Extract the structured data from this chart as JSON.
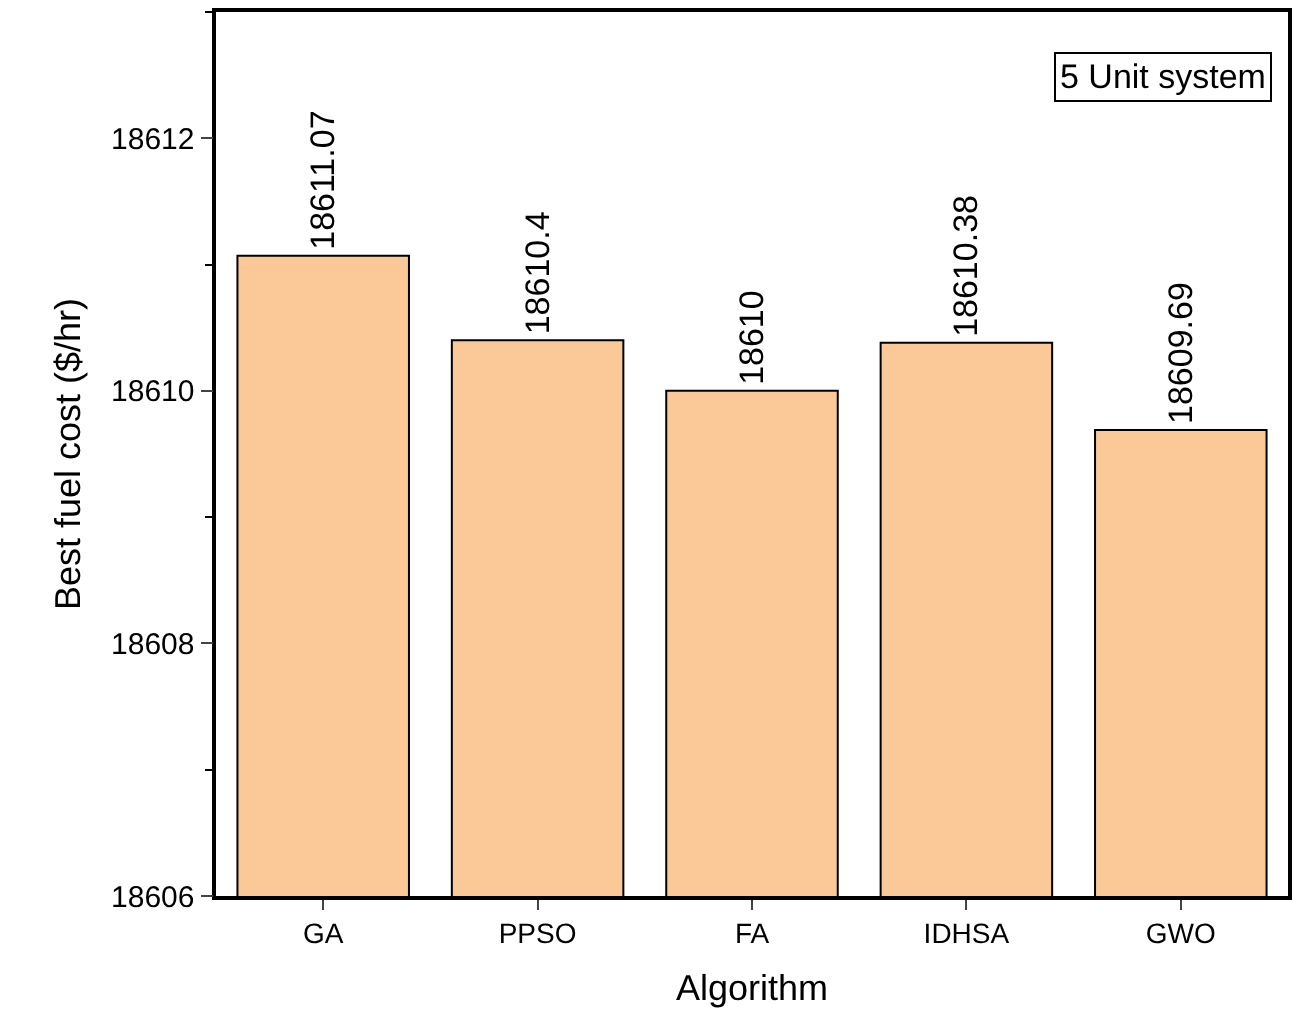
{
  "chart_data": {
    "type": "bar",
    "xlabel": "Algorithm",
    "ylabel": "Best fuel cost ($/hr)",
    "annotations": [
      "5 Unit system"
    ],
    "categories": [
      "GA",
      "PPSO",
      "FA",
      "IDHSA",
      "GWO"
    ],
    "values": [
      18611.07,
      18610.4,
      18610,
      18610.38,
      18609.69
    ],
    "color": "#fbc898",
    "ylim": [
      18606,
      18613
    ],
    "yticks": [
      18606,
      18608,
      18610,
      18612
    ],
    "data_labels": true,
    "grid": false,
    "legend": false
  }
}
